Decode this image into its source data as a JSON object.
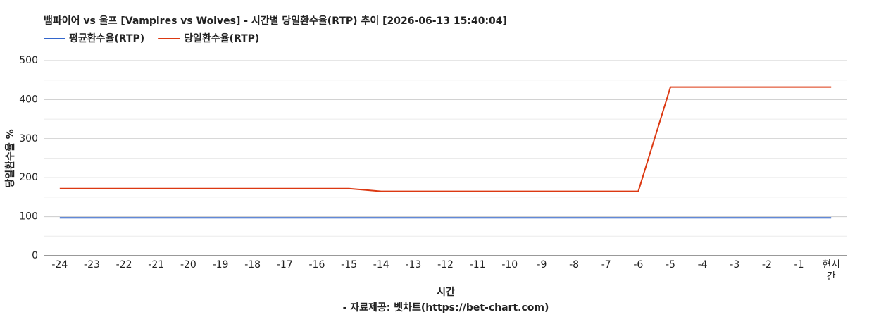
{
  "chart_data": {
    "type": "line",
    "title": "뱀파이어 vs 울프 [Vampires vs Wolves] - 시간별 당일환수율(RTP) 추이 [2026-06-13 15:40:04]",
    "x_label": "시간",
    "y_label": "당일환수율 %",
    "source": "- 자료제공: 벳차트(https://bet-chart.com)",
    "categories": [
      "-24",
      "-23",
      "-22",
      "-21",
      "-20",
      "-19",
      "-18",
      "-17",
      "-16",
      "-15",
      "-14",
      "-13",
      "-12",
      "-11",
      "-10",
      "-9",
      "-8",
      "-7",
      "-6",
      "-5",
      "-4",
      "-3",
      "-2",
      "-1",
      "현시간"
    ],
    "series": [
      {
        "name": "평균환수율(RTP)",
        "color": "#3366cc",
        "values": [
          97,
          97,
          97,
          97,
          97,
          97,
          97,
          97,
          97,
          97,
          97,
          97,
          97,
          97,
          97,
          97,
          97,
          97,
          97,
          97,
          97,
          97,
          97,
          97,
          97
        ]
      },
      {
        "name": "당일환수율(RTP)",
        "color": "#dc3912",
        "values": [
          172,
          172,
          172,
          172,
          172,
          172,
          172,
          172,
          172,
          172,
          165,
          165,
          165,
          165,
          165,
          165,
          165,
          165,
          165,
          432,
          432,
          432,
          432,
          432,
          432
        ]
      }
    ],
    "ylim": [
      0,
      500
    ],
    "yticks": [
      0,
      100,
      200,
      300,
      400,
      500
    ],
    "grid": true,
    "legend": "top-left"
  }
}
